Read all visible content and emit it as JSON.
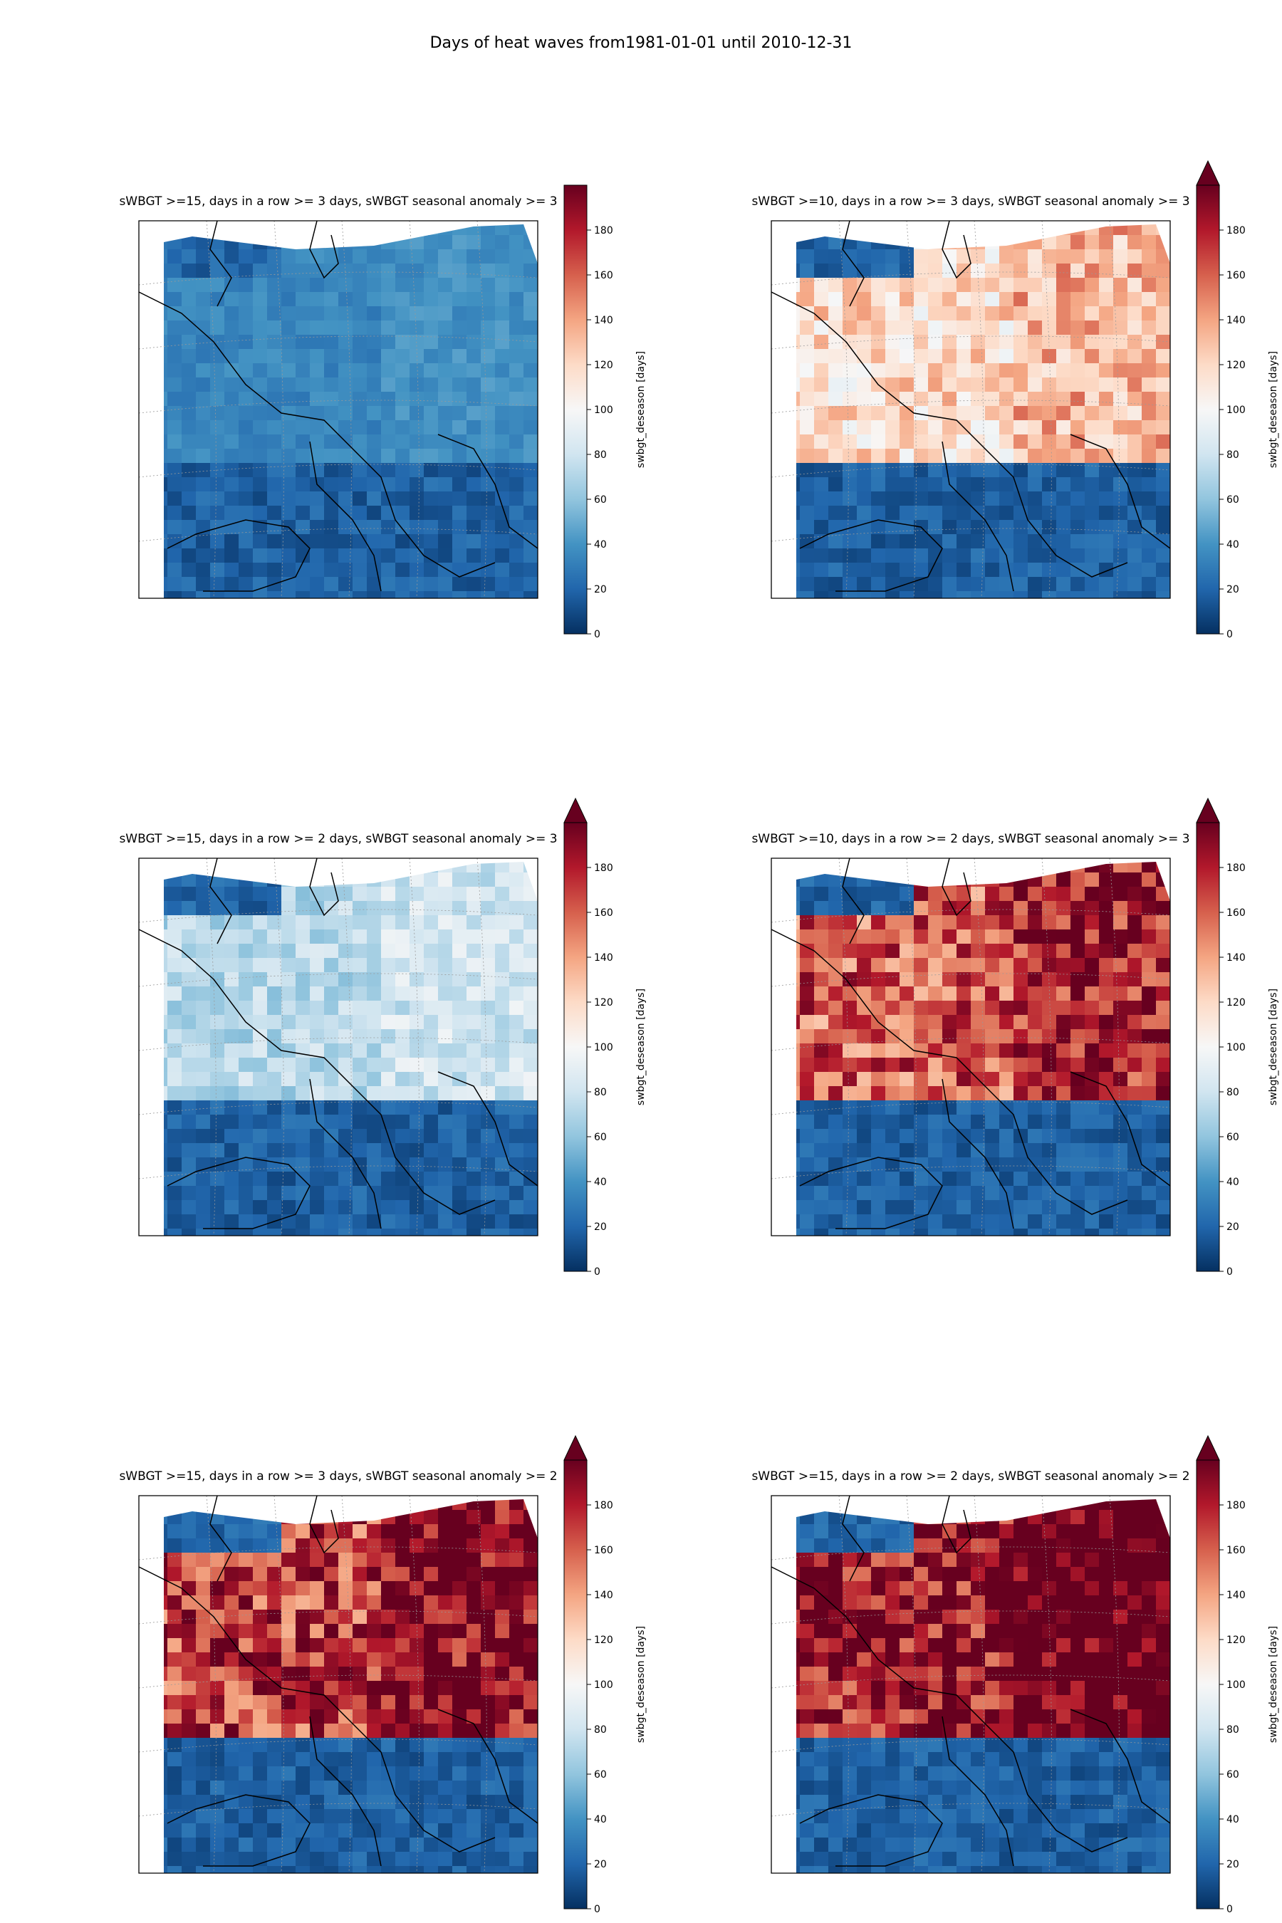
{
  "figure_title": "Days of heat waves from1981-01-01 until 2010-12-31",
  "colormap": {
    "name": "RdBu_r",
    "stops": [
      "#053061",
      "#2166ac",
      "#4393c3",
      "#92c5de",
      "#d1e5f0",
      "#f7f7f7",
      "#fddbc7",
      "#f4a582",
      "#d6604d",
      "#b2182b",
      "#67001f"
    ],
    "vmin": 0,
    "vmax": 200
  },
  "colorbar": {
    "label": "swbgt_deseason [days]",
    "ticks": [
      "0",
      "20",
      "40",
      "60",
      "80",
      "100",
      "120",
      "140",
      "160",
      "180"
    ]
  },
  "panels": [
    {
      "title": "sWBGT >=15, days in a row >= 3 days, sWBGT seasonal anomaly >= 3",
      "extend_max": false,
      "level": 0.18
    },
    {
      "title": "sWBGT >=10, days in a row >= 3 days, sWBGT seasonal anomaly >= 3",
      "extend_max": true,
      "level": 0.62
    },
    {
      "title": "sWBGT >=15, days in a row >= 2 days, sWBGT seasonal anomaly >= 3",
      "extend_max": true,
      "level": 0.38
    },
    {
      "title": "sWBGT >=10, days in a row >= 2 days, sWBGT seasonal anomaly >= 3",
      "extend_max": true,
      "level": 0.85
    },
    {
      "title": "sWBGT >=15, days in a row >= 3 days, sWBGT seasonal anomaly >= 2",
      "extend_max": true,
      "level": 0.9
    },
    {
      "title": "sWBGT >=15, days in a row >= 2 days, sWBGT seasonal anomaly >= 2",
      "extend_max": true,
      "level": 1.0
    }
  ]
}
